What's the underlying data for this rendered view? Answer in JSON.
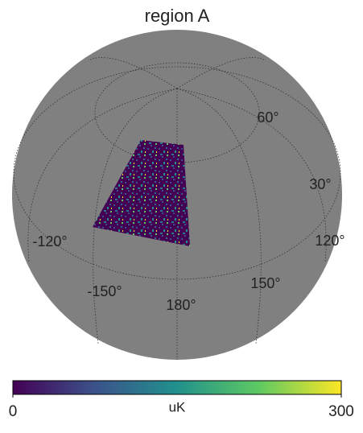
{
  "chart_data": {
    "type": "orthview",
    "title": "region A",
    "graticule_labels": [
      {
        "value": 60,
        "label": "60°"
      },
      {
        "value": 30,
        "label": "30°"
      },
      {
        "value": 120,
        "label": "120°"
      },
      {
        "value": 150,
        "label": "150°"
      },
      {
        "value": 180,
        "label": "180°"
      },
      {
        "value": -150,
        "label": "-150°"
      },
      {
        "value": -120,
        "label": "-120°"
      }
    ],
    "colorbar": {
      "label": "uK",
      "lim": [
        0,
        300
      ],
      "ticks": [
        0,
        300
      ],
      "colors": [
        "#440154",
        "#3b528b",
        "#21918c",
        "#5ec962",
        "#fde725"
      ]
    },
    "background_color": "#808080"
  }
}
